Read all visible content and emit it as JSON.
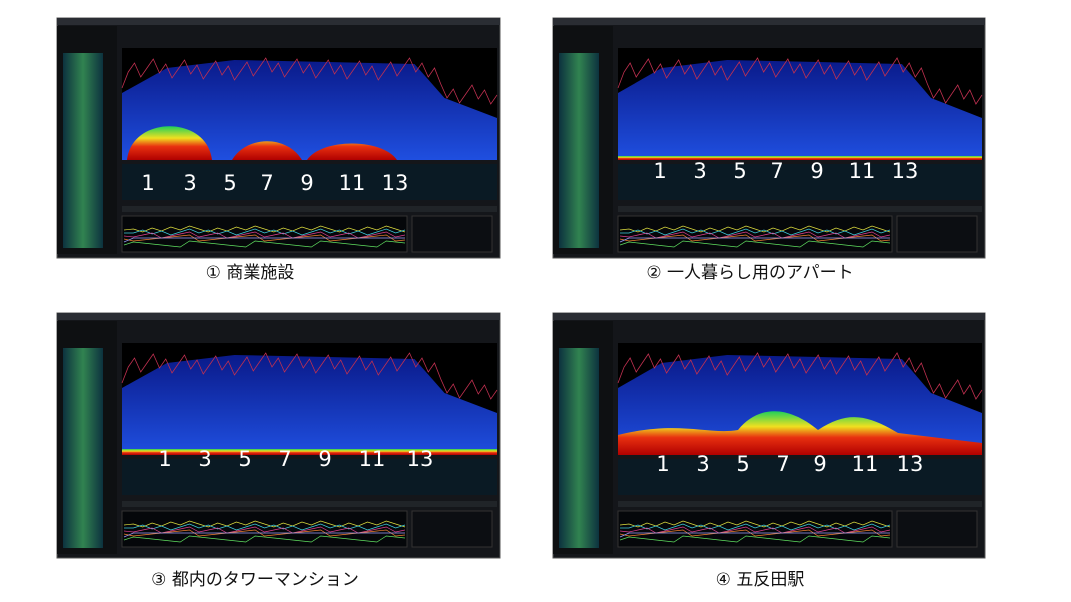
{
  "panels": [
    {
      "caption": "① 商業施設",
      "channels": [
        "1",
        "3",
        "5",
        "7",
        "9",
        "11",
        "13"
      ]
    },
    {
      "caption": "② 一人暮らし用のアパート",
      "channels": [
        "1",
        "3",
        "5",
        "7",
        "9",
        "11",
        "13"
      ]
    },
    {
      "caption": "③ 都内のタワーマンション",
      "channels": [
        "1",
        "3",
        "5",
        "7",
        "9",
        "11",
        "13"
      ]
    },
    {
      "caption": "④ 五反田駅",
      "channels": [
        "1",
        "3",
        "5",
        "7",
        "9",
        "11",
        "13"
      ]
    }
  ]
}
